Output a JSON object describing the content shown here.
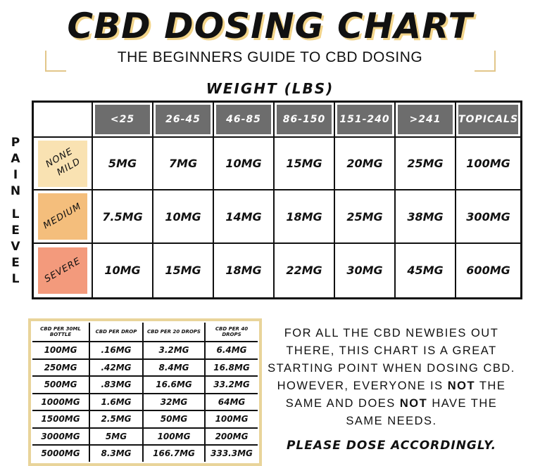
{
  "title": "CBD DOSING CHART",
  "subtitle": "THE BEGINNERS GUIDE TO CBD DOSING",
  "weight_label": "WEIGHT (LBS)",
  "pain_label": "PAIN LEVEL",
  "columns": [
    "<25",
    "26-45",
    "46-85",
    "86-150",
    "151-240",
    ">241",
    "TOPICALS"
  ],
  "rows": [
    {
      "level": "NONE\n  MILD",
      "color": "#f9e2b2",
      "values": [
        "5MG",
        "7MG",
        "10MG",
        "15MG",
        "20MG",
        "25MG",
        "100MG"
      ]
    },
    {
      "level": "MEDIUM",
      "color": "#f4be7c",
      "values": [
        "7.5MG",
        "10MG",
        "14MG",
        "18MG",
        "25MG",
        "38MG",
        "300MG"
      ]
    },
    {
      "level": "SEVERE",
      "color": "#f39a7c",
      "values": [
        "10MG",
        "15MG",
        "18MG",
        "22MG",
        "30MG",
        "45MG",
        "600MG"
      ]
    }
  ],
  "conversion": {
    "headers": [
      "CBD PER 30ML BOTTLE",
      "CBD PER DROP",
      "CBD PER 20 DROPS",
      "CBD PER 40 DROPS"
    ],
    "rows": [
      [
        "100MG",
        ".16MG",
        "3.2MG",
        "6.4MG"
      ],
      [
        "250MG",
        ".42MG",
        "8.4MG",
        "16.8MG"
      ],
      [
        "500MG",
        ".83MG",
        "16.6MG",
        "33.2MG"
      ],
      [
        "1000MG",
        "1.6MG",
        "32MG",
        "64MG"
      ],
      [
        "1500MG",
        "2.5MG",
        "50MG",
        "100MG"
      ],
      [
        "3000MG",
        "5MG",
        "100MG",
        "200MG"
      ],
      [
        "5000MG",
        "8.3MG",
        "166.7MG",
        "333.3MG"
      ]
    ]
  },
  "note": {
    "part1": "FOR ALL THE CBD NEWBIES OUT THERE, THIS CHART IS A GREAT STARTING POINT WHEN DOSING CBD. HOWEVER, EVERYONE IS ",
    "bold1": "NOT",
    "part2": " THE SAME AND DOES ",
    "bold2": "NOT",
    "part3": " HAVE THE SAME NEEDS."
  },
  "closing": "PLEASE DOSE ACCORDINGLY."
}
